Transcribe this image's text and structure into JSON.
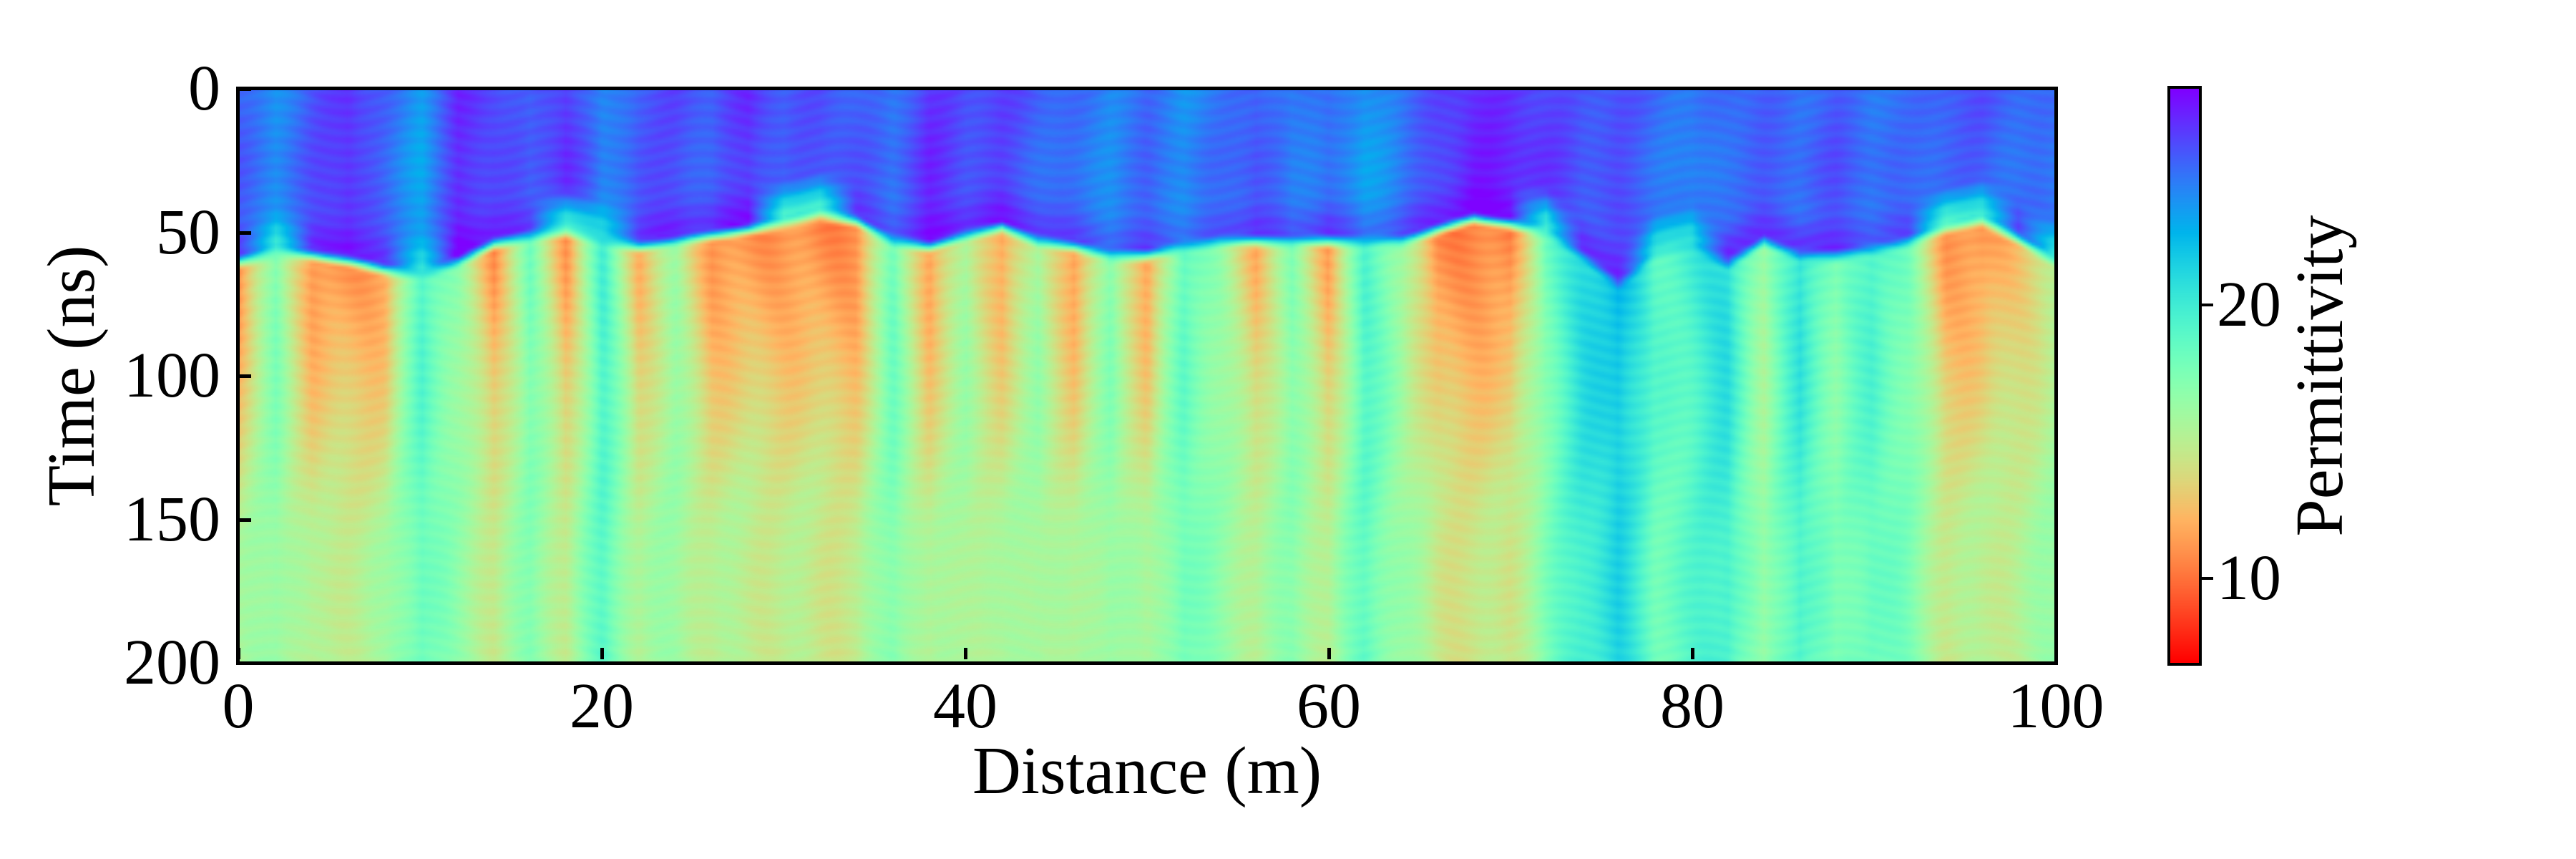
{
  "figure": {
    "background": "#ffffff"
  },
  "axes": {
    "xlabel": "Distance (m)",
    "ylabel": "Time (ns)",
    "x_ticks": [
      0,
      20,
      40,
      60,
      80,
      100
    ],
    "y_ticks": [
      0,
      50,
      100,
      150,
      200
    ],
    "xlim": [
      0,
      100
    ],
    "ylim": [
      200,
      0
    ]
  },
  "colorbar": {
    "label": "Permittivity",
    "ticks": [
      10,
      20
    ],
    "vmin": 6.9,
    "vmax": 27.9,
    "colormap": "rainbow_r"
  },
  "chart_data": {
    "type": "heatmap",
    "title": "",
    "xlabel": "Distance (m)",
    "ylabel": "Time (ns)",
    "value_label": "Permittivity",
    "x_range": [
      0,
      100
    ],
    "t_range": [
      0,
      200
    ],
    "vmin": 6.9,
    "vmax": 27.9,
    "colormap": "rainbow_r",
    "column_step_m": 2,
    "column_fields": [
      "distance_m",
      "interface_ns",
      "upper_permittivity",
      "subsurface_permittivity",
      "deep_permittivity",
      "interface_cap_permittivity"
    ],
    "columns": [
      [
        0,
        57,
        25.0,
        11.0,
        15.3,
        null
      ],
      [
        2,
        54,
        23.8,
        17.5,
        16.8,
        20.5
      ],
      [
        4,
        55,
        25.5,
        10.8,
        14.8,
        null
      ],
      [
        6,
        57,
        26.8,
        11.2,
        15.2,
        null
      ],
      [
        8,
        60,
        25.2,
        11.5,
        15.6,
        null
      ],
      [
        10,
        62,
        23.6,
        19.5,
        18.6,
        21.0
      ],
      [
        12,
        57,
        26.8,
        16.5,
        16.4,
        null
      ],
      [
        14,
        51,
        26.2,
        11.0,
        14.9,
        null
      ],
      [
        16,
        48,
        25.0,
        17.8,
        17.0,
        null
      ],
      [
        18,
        47,
        26.5,
        11.0,
        15.0,
        20.0
      ],
      [
        20,
        50,
        23.8,
        19.8,
        18.8,
        21.0
      ],
      [
        22,
        52,
        25.5,
        12.0,
        15.5,
        null
      ],
      [
        24,
        50,
        26.0,
        16.0,
        16.2,
        null
      ],
      [
        26,
        48,
        25.5,
        11.0,
        15.0,
        null
      ],
      [
        28,
        46,
        26.8,
        11.0,
        15.0,
        null
      ],
      [
        30,
        44,
        25.5,
        11.0,
        14.8,
        19.5
      ],
      [
        32,
        41,
        25.8,
        10.6,
        14.6,
        20.0
      ],
      [
        34,
        43,
        25.2,
        10.6,
        14.6,
        null
      ],
      [
        36,
        50,
        24.5,
        18.3,
        17.5,
        null
      ],
      [
        38,
        52,
        26.5,
        11.2,
        15.0,
        null
      ],
      [
        40,
        48,
        25.8,
        16.0,
        16.0,
        null
      ],
      [
        42,
        45,
        26.2,
        11.3,
        15.2,
        null
      ],
      [
        44,
        50,
        25.5,
        16.2,
        16.3,
        null
      ],
      [
        46,
        52,
        25.0,
        11.0,
        15.0,
        null
      ],
      [
        48,
        55,
        24.2,
        17.5,
        16.8,
        null
      ],
      [
        50,
        55,
        25.0,
        11.0,
        15.2,
        null
      ],
      [
        52,
        52,
        23.8,
        19.0,
        18.3,
        null
      ],
      [
        54,
        50,
        24.5,
        16.3,
        16.5,
        null
      ],
      [
        56,
        50,
        25.5,
        12.0,
        15.5,
        26.8
      ],
      [
        58,
        50,
        24.3,
        17.0,
        16.8,
        null
      ],
      [
        60,
        50,
        25.2,
        11.5,
        15.3,
        26.8
      ],
      [
        62,
        50,
        23.6,
        19.3,
        18.5,
        null
      ],
      [
        64,
        50,
        24.8,
        16.5,
        16.5,
        null
      ],
      [
        66,
        46,
        26.0,
        10.6,
        14.5,
        null
      ],
      [
        68,
        42,
        26.8,
        10.4,
        14.3,
        null
      ],
      [
        70,
        44,
        26.5,
        10.4,
        14.4,
        null
      ],
      [
        72,
        47,
        26.0,
        18.0,
        17.3,
        20.0
      ],
      [
        74,
        55,
        25.5,
        21.0,
        20.0,
        27.0
      ],
      [
        76,
        65,
        25.8,
        22.8,
        21.2,
        27.0
      ],
      [
        78,
        55,
        25.2,
        18.8,
        18.2,
        21.0
      ],
      [
        80,
        52,
        24.5,
        19.8,
        18.8,
        20.5
      ],
      [
        82,
        58,
        25.2,
        21.0,
        20.0,
        27.2
      ],
      [
        84,
        50,
        25.3,
        15.8,
        16.0,
        null
      ],
      [
        86,
        55,
        24.8,
        20.8,
        19.8,
        26.8
      ],
      [
        88,
        55,
        25.3,
        17.0,
        17.0,
        26.5
      ],
      [
        90,
        53,
        24.6,
        19.8,
        18.8,
        null
      ],
      [
        92,
        50,
        24.8,
        17.5,
        17.3,
        null
      ],
      [
        94,
        46,
        25.5,
        11.2,
        14.9,
        19.6
      ],
      [
        96,
        43,
        25.8,
        10.8,
        14.8,
        20.2
      ],
      [
        98,
        49,
        25.2,
        12.8,
        15.4,
        null
      ],
      [
        100,
        57,
        24.8,
        14.5,
        16.2,
        20.5
      ]
    ]
  }
}
